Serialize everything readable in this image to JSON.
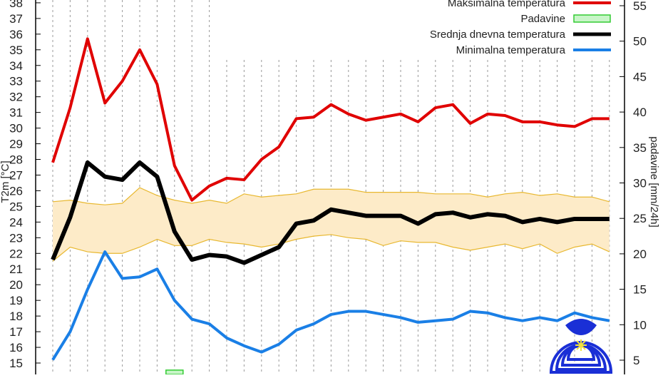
{
  "chart_data": {
    "type": "line",
    "title": "",
    "ylabel": "T2m [°C]",
    "y2label": "padavine [mm/24h]",
    "ylim": [
      14.3,
      38.2
    ],
    "y2lim": [
      3.0,
      55.3
    ],
    "yticks": [
      15,
      16,
      17,
      18,
      19,
      20,
      21,
      22,
      23,
      24,
      25,
      26,
      27,
      28,
      29,
      30,
      31,
      32,
      33,
      34,
      35,
      36,
      37,
      38
    ],
    "y2ticks": [
      5,
      10,
      15,
      20,
      25,
      30,
      35,
      40,
      45,
      50,
      55
    ],
    "x": [
      1,
      2,
      3,
      4,
      5,
      6,
      7,
      8,
      9,
      10,
      11,
      12,
      13,
      14,
      15,
      16,
      17,
      18,
      19,
      20,
      21,
      22,
      23,
      24,
      25,
      26,
      27,
      28,
      29,
      30,
      31,
      32,
      33
    ],
    "grid": "vertical dotted",
    "legend_position": "top-right",
    "series": [
      {
        "name": "Maksimalna temperatura",
        "color": "#e00000",
        "axis": "left",
        "values": [
          27.8,
          31.3,
          35.7,
          31.6,
          33.0,
          35.0,
          32.8,
          27.6,
          25.4,
          26.3,
          26.8,
          26.7,
          28.0,
          28.8,
          30.6,
          30.7,
          31.5,
          30.9,
          30.5,
          30.7,
          30.9,
          30.4,
          31.3,
          31.5,
          30.3,
          30.9,
          30.8,
          30.4,
          30.4,
          30.2,
          30.1,
          30.6,
          30.6
        ]
      },
      {
        "name": "Padavine",
        "color": "#33cc33",
        "fill": "#c8f5c8",
        "axis": "right",
        "kind": "bar",
        "values": [
          0,
          0,
          0,
          0,
          0,
          0,
          0,
          3.6,
          0,
          0,
          0,
          0,
          0,
          0,
          0,
          0,
          0,
          0,
          0,
          0,
          0,
          0,
          0,
          0,
          0,
          0,
          0,
          0,
          0,
          0,
          0,
          0,
          0
        ]
      },
      {
        "name": "Srednja dnevna temperatura",
        "color": "#000000",
        "axis": "left",
        "values": [
          21.6,
          24.3,
          27.8,
          26.9,
          26.7,
          27.8,
          26.9,
          23.4,
          21.6,
          21.9,
          21.8,
          21.4,
          21.9,
          22.4,
          23.9,
          24.1,
          24.8,
          24.6,
          24.4,
          24.4,
          24.4,
          23.9,
          24.5,
          24.6,
          24.3,
          24.5,
          24.4,
          24.0,
          24.2,
          24.0,
          24.2,
          24.2,
          24.2
        ]
      },
      {
        "name": "Minimalna temperatura",
        "color": "#1a7fe6",
        "axis": "left",
        "values": [
          15.2,
          17.0,
          19.7,
          22.1,
          20.4,
          20.5,
          21.0,
          19.0,
          17.8,
          17.5,
          16.6,
          16.1,
          15.7,
          16.2,
          17.1,
          17.5,
          18.1,
          18.3,
          18.3,
          18.1,
          17.9,
          17.6,
          17.7,
          17.8,
          18.3,
          18.2,
          17.9,
          17.7,
          17.9,
          17.7,
          18.2,
          17.9,
          17.7
        ]
      }
    ],
    "band": {
      "color": "#e8b830",
      "fill": "#fdebc8",
      "upper": [
        25.3,
        25.4,
        25.2,
        25.1,
        25.2,
        26.2,
        25.7,
        25.4,
        25.2,
        25.4,
        25.2,
        25.8,
        25.6,
        25.7,
        25.8,
        26.1,
        26.1,
        26.1,
        25.9,
        25.9,
        25.9,
        25.9,
        25.8,
        25.8,
        25.8,
        25.6,
        25.8,
        25.9,
        25.7,
        25.8,
        25.6,
        25.6,
        25.3
      ],
      "lower": [
        21.5,
        22.4,
        22.1,
        22.0,
        22.0,
        22.4,
        22.9,
        22.5,
        22.5,
        22.9,
        22.7,
        22.6,
        22.4,
        22.6,
        22.9,
        23.1,
        23.2,
        23.0,
        22.9,
        22.5,
        22.8,
        22.7,
        22.7,
        22.4,
        22.2,
        22.4,
        22.6,
        22.3,
        22.6,
        22.0,
        22.4,
        22.6,
        22.1
      ]
    }
  }
}
